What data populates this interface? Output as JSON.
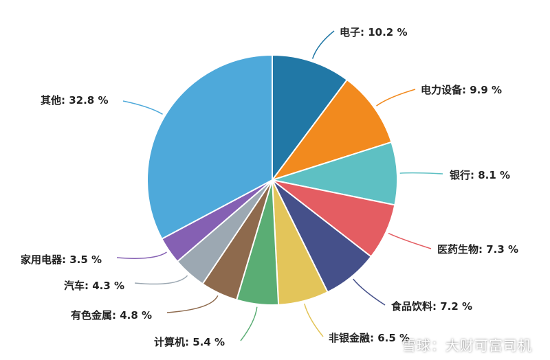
{
  "chart_data": {
    "type": "pie",
    "start_angle_deg": 0,
    "direction": "clockwise",
    "slices": [
      {
        "label": "电子",
        "value": 10.2,
        "display": "电子: 10.2 %",
        "color": "#2178A6"
      },
      {
        "label": "电力设备",
        "value": 9.9,
        "display": "电力设备: 9.9 %",
        "color": "#F28A1E"
      },
      {
        "label": "银行",
        "value": 8.1,
        "display": "银行: 8.1 %",
        "color": "#5EC0C3"
      },
      {
        "label": "医药生物",
        "value": 7.3,
        "display": "医药生物: 7.3 %",
        "color": "#E45D62"
      },
      {
        "label": "食品饮料",
        "value": 7.2,
        "display": "食品饮料: 7.2 %",
        "color": "#45508A"
      },
      {
        "label": "非银金融",
        "value": 6.5,
        "display": "非银金融: 6.5 %",
        "color": "#E3C55A"
      },
      {
        "label": "计算机",
        "value": 5.4,
        "display": "计算机: 5.4 %",
        "color": "#5AAD74"
      },
      {
        "label": "有色金属",
        "value": 4.8,
        "display": "有色金属: 4.8 %",
        "color": "#8E6A4D"
      },
      {
        "label": "汽车",
        "value": 4.3,
        "display": "汽车: 4.3 %",
        "color": "#9CA8B2"
      },
      {
        "label": "家用电器",
        "value": 3.5,
        "display": "家用电器: 3.5 %",
        "color": "#8560B3"
      },
      {
        "label": "其他",
        "value": 32.8,
        "display": "其他: 32.8 %",
        "color": "#4EA9DA"
      }
    ]
  },
  "watermark": "雪球：大财可富司机"
}
